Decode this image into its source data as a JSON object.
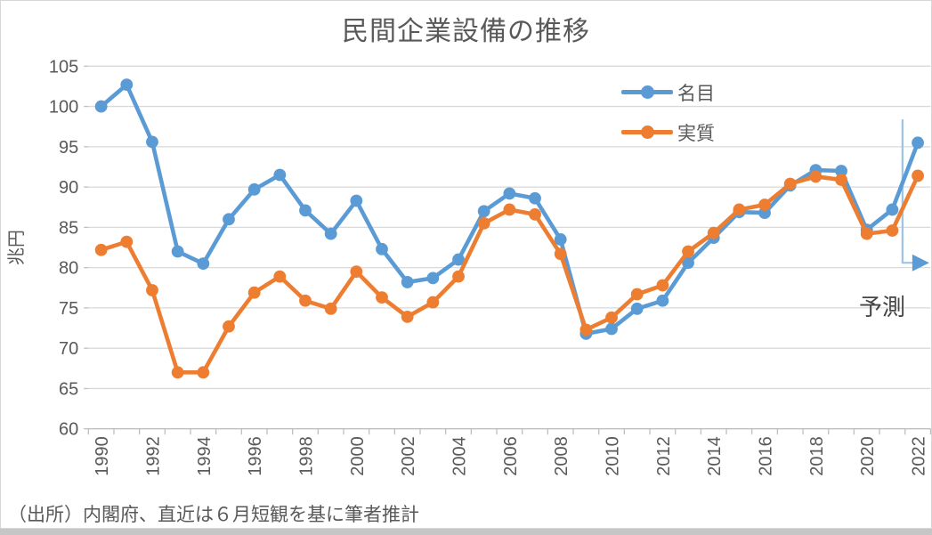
{
  "title": "民間企業設備の推移",
  "source_note": "（出所）内閣府、直近は６月短観を基に筆者推計",
  "forecast_label": "予測",
  "colors": {
    "nominal": "#5B9BD5",
    "real": "#ED7D31",
    "grid": "#D9D9D9",
    "axis": "#BFBFBF",
    "axis_text": "#595959",
    "annotation_line": "#9DC3E6",
    "annotation_arrow": "#5B9BD5"
  },
  "chart_data": {
    "type": "line",
    "title": "民間企業設備の推移",
    "xlabel": "",
    "ylabel": "兆円",
    "ylim": [
      60,
      105
    ],
    "ytick_step": 5,
    "x_tick_label_step": 2,
    "grid": true,
    "legend_position": "top-right",
    "x": [
      1990,
      1991,
      1992,
      1993,
      1994,
      1995,
      1996,
      1997,
      1998,
      1999,
      2000,
      2001,
      2002,
      2003,
      2004,
      2005,
      2006,
      2007,
      2008,
      2009,
      2010,
      2011,
      2012,
      2013,
      2014,
      2015,
      2016,
      2017,
      2018,
      2019,
      2020,
      2021,
      2022
    ],
    "series": [
      {
        "name": "名目",
        "color": "#5B9BD5",
        "values": [
          100.0,
          102.7,
          95.6,
          82.0,
          80.5,
          86.0,
          89.7,
          91.5,
          87.1,
          84.2,
          88.3,
          82.3,
          78.2,
          78.7,
          81.0,
          87.0,
          89.2,
          88.6,
          83.5,
          71.8,
          72.4,
          74.9,
          75.9,
          80.6,
          83.7,
          86.9,
          86.8,
          90.2,
          92.1,
          92.0,
          84.7,
          87.2,
          95.5
        ]
      },
      {
        "name": "実質",
        "color": "#ED7D31",
        "values": [
          82.2,
          83.2,
          77.2,
          67.0,
          67.0,
          72.7,
          76.9,
          78.9,
          75.9,
          74.9,
          79.5,
          76.3,
          73.9,
          75.7,
          78.9,
          85.5,
          87.2,
          86.6,
          81.7,
          72.3,
          73.8,
          76.7,
          77.8,
          82.0,
          84.3,
          87.2,
          87.8,
          90.4,
          91.3,
          90.9,
          84.2,
          84.6,
          91.4
        ]
      }
    ],
    "annotation": {
      "label": "予測",
      "line_x_year": 2021.4,
      "line_top_value": 98.4,
      "arrow_value": 80.6
    }
  }
}
